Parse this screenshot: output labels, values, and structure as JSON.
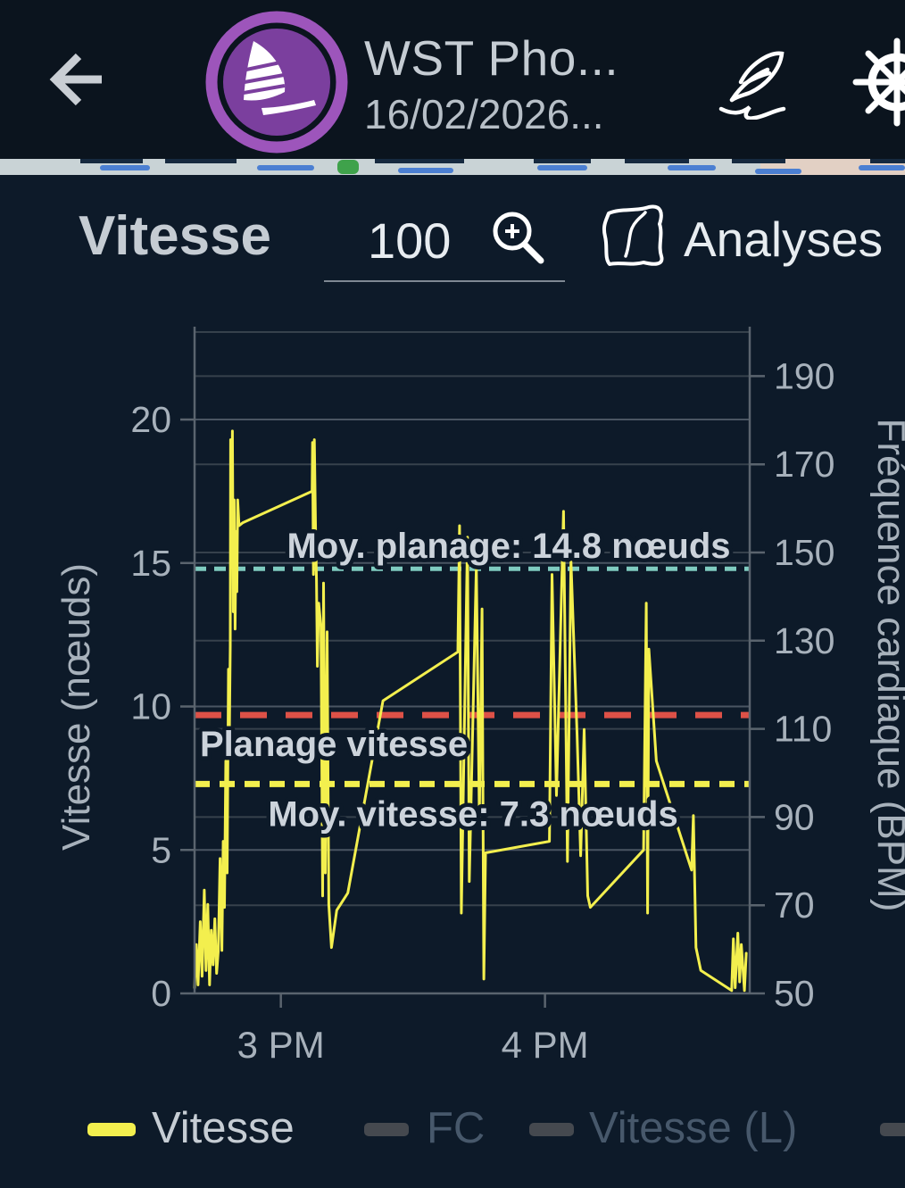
{
  "app": {
    "bg_color": "#0d1a29",
    "header_bg_color": "#0b141e",
    "accent_yellow": "#f3ef4e",
    "accent_teal": "#7fcbc0",
    "accent_red": "#dd5147"
  },
  "header": {
    "title": "WST Pho...",
    "subtitle": "16/02/2026...",
    "icons": [
      "back-arrow-icon",
      "windsurfer-avatar",
      "feather-icon",
      "ship-wheel-icon"
    ],
    "avatar_colors": {
      "ring": "#9d55bb",
      "disc": "#7b3f9e",
      "glyph": "#ffffff"
    }
  },
  "toolbar": {
    "section_title": "Vitesse",
    "zoom_value": "100",
    "icons": [
      "zoom-in-icon",
      "map-icon"
    ],
    "analyses_label": "Analyses"
  },
  "chart_data": {
    "type": "line",
    "title": "",
    "grid": true,
    "x_axis": {
      "unit": "time",
      "range_minutes": [
        -19.6,
        106.5
      ],
      "ticks": [
        {
          "label": "3 PM",
          "minutes": 0
        },
        {
          "label": "4 PM",
          "minutes": 60
        }
      ]
    },
    "y_left": {
      "label": "Vitesse (nœuds)",
      "ticks": [
        0,
        5,
        10,
        15,
        20
      ],
      "range": [
        0,
        23.05
      ]
    },
    "y_right": {
      "label": "Fréquence cardiaque (BPM)",
      "ticks": [
        50,
        70,
        90,
        110,
        130,
        150,
        170,
        190
      ],
      "range": [
        50,
        200
      ]
    },
    "ref_lines": [
      {
        "id": "avg_planing",
        "label": "Moy. planage: 14.8 nœuds",
        "knots": 14.8,
        "color": "#7fcbc0"
      },
      {
        "id": "planing_threshold",
        "label": "Planage vitesse",
        "knots": 9.7,
        "color": "#dd5147"
      },
      {
        "id": "avg_speed",
        "label": "Moy. vitesse: 7.3 nœuds",
        "knots": 7.3,
        "color": "#f3ef4e"
      }
    ],
    "series": [
      {
        "name": "Vitesse",
        "unit": "nœuds",
        "color": "#f3ef4e",
        "points": [
          [
            -19.6,
            0.2
          ],
          [
            -19.2,
            1.7
          ],
          [
            -18.8,
            0.3
          ],
          [
            -18.3,
            2.5
          ],
          [
            -17.9,
            0.6
          ],
          [
            -17.4,
            3.6
          ],
          [
            -17.0,
            0.8
          ],
          [
            -16.6,
            3.1
          ],
          [
            -16.2,
            0.3
          ],
          [
            -15.8,
            2.2
          ],
          [
            -15.4,
            1.0
          ],
          [
            -15.0,
            2.6
          ],
          [
            -14.6,
            0.7
          ],
          [
            -14.2,
            1.5
          ],
          [
            -13.8,
            4.7
          ],
          [
            -13.4,
            1.5
          ],
          [
            -13.1,
            5.3
          ],
          [
            -12.8,
            3.0
          ],
          [
            -12.5,
            8.1
          ],
          [
            -12.2,
            4.2
          ],
          [
            -11.9,
            11.3
          ],
          [
            -11.7,
            9.0
          ],
          [
            -11.5,
            12.1
          ],
          [
            -11.4,
            19.3
          ],
          [
            -11.2,
            15.2
          ],
          [
            -11.0,
            19.6
          ],
          [
            -10.8,
            13.3
          ],
          [
            -10.6,
            17.2
          ],
          [
            -10.4,
            12.7
          ],
          [
            -10.2,
            16.1
          ],
          [
            -10.0,
            14.0
          ],
          [
            -9.8,
            17.2
          ],
          [
            -9.5,
            16.3
          ],
          [
            -8.7,
            16.4
          ],
          [
            7.1,
            17.5
          ],
          [
            7.2,
            19.2
          ],
          [
            7.4,
            14.6
          ],
          [
            7.6,
            19.3
          ],
          [
            7.9,
            16.1
          ],
          [
            8.1,
            14.4
          ],
          [
            8.3,
            11.4
          ],
          [
            8.6,
            13.6
          ],
          [
            9.1,
            12.8
          ],
          [
            9.5,
            3.4
          ],
          [
            9.7,
            14.3
          ],
          [
            10.1,
            4.2
          ],
          [
            10.5,
            12.6
          ],
          [
            10.9,
            3.1
          ],
          [
            11.5,
            1.6
          ],
          [
            12.7,
            2.9
          ],
          [
            15.2,
            3.5
          ],
          [
            23.2,
            10.2
          ],
          [
            40.2,
            11.9
          ],
          [
            40.6,
            16.3
          ],
          [
            41.0,
            2.8
          ],
          [
            42.4,
            15.9
          ],
          [
            42.8,
            3.9
          ],
          [
            44.4,
            14.9
          ],
          [
            45.1,
            6.1
          ],
          [
            45.7,
            13.4
          ],
          [
            46.1,
            0.5
          ],
          [
            46.5,
            4.9
          ],
          [
            61.0,
            5.3
          ],
          [
            61.6,
            14.6
          ],
          [
            62.6,
            6.9
          ],
          [
            64.2,
            16.8
          ],
          [
            65.1,
            4.6
          ],
          [
            65.9,
            15.1
          ],
          [
            67.3,
            9.0
          ],
          [
            68.1,
            4.8
          ],
          [
            68.9,
            9.2
          ],
          [
            69.7,
            3.4
          ],
          [
            70.3,
            3.0
          ],
          [
            82.4,
            5.0
          ],
          [
            83.0,
            13.6
          ],
          [
            83.3,
            2.8
          ],
          [
            83.6,
            12.0
          ],
          [
            85.3,
            8.1
          ],
          [
            93.3,
            4.3
          ],
          [
            93.7,
            6.2
          ],
          [
            94.3,
            1.6
          ],
          [
            95.4,
            0.8
          ],
          [
            102.4,
            0.1
          ],
          [
            102.8,
            1.9
          ],
          [
            103.2,
            0.2
          ],
          [
            103.8,
            2.1
          ],
          [
            104.2,
            0.4
          ],
          [
            104.6,
            1.7
          ],
          [
            105.3,
            0.1
          ],
          [
            105.7,
            1.4
          ]
        ]
      }
    ]
  },
  "legend": {
    "items": [
      {
        "label": "Vitesse",
        "color": "#f3ef4e",
        "active": true
      },
      {
        "label": "FC",
        "color": "#45494f",
        "active": false
      },
      {
        "label": "Vitesse (L)",
        "color": "#45494f",
        "active": false
      },
      {
        "label": "",
        "color": "#45494f",
        "active": false
      }
    ]
  }
}
